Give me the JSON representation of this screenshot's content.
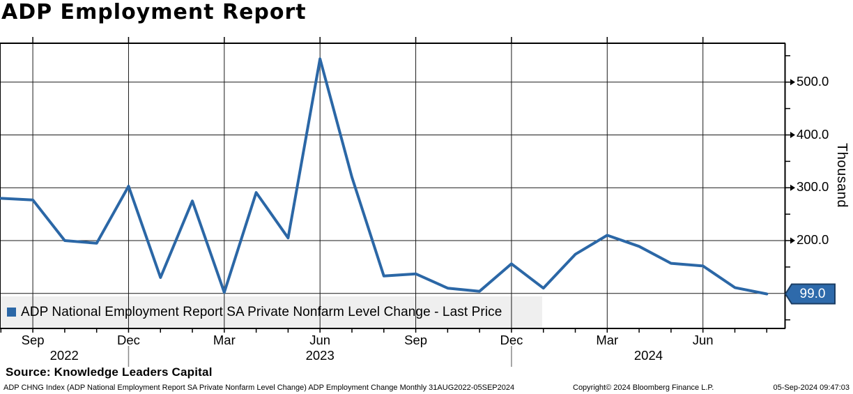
{
  "title": "ADP Employment Report",
  "legend": {
    "label": "ADP National Employment Report SA Private Nonfarm Level Change - Last Price"
  },
  "y_axis": {
    "unit_label": "Thousand",
    "major_tick_labels": [
      "500.0",
      "400.0",
      "300.0",
      "200.0"
    ],
    "major_tick_values": [
      500,
      400,
      300,
      200
    ],
    "minor_tick_values": [
      550,
      450,
      350,
      250,
      150,
      50
    ],
    "last_price_label": "99.0"
  },
  "x_axis": {
    "quarter_labels": [
      "Sep",
      "Dec",
      "Mar",
      "Jun",
      "Sep",
      "Dec",
      "Mar",
      "Jun"
    ],
    "quarter_month_indices": [
      1,
      4,
      7,
      10,
      13,
      16,
      19,
      22
    ],
    "year_labels": [
      "2022",
      "2023",
      "2024"
    ],
    "year_separator_month_indices": [
      4,
      16
    ]
  },
  "source_line": "Source: Knowledge Leaders Capital",
  "footer": {
    "left": "ADP CHNG Index (ADP National Employment Report SA Private Nonfarm Level Change) ADP Employment Change  Monthly 31AUG2022-05SEP2024",
    "copyright": "Copyright© 2024 Bloomberg Finance L.P.",
    "timestamp": "05-Sep-2024 09:47:03"
  },
  "colors": {
    "line": "#2b67a6",
    "legend_marker": "#2b67a6",
    "badge_fill": "#2e6aab",
    "badge_border": "#1b3d63",
    "badge_text": "#ffffff",
    "grid": "#1a1a1a",
    "axis": "#000000",
    "legend_bg": "#efefef",
    "year_separator": "#8a8a8a"
  },
  "chart_data": {
    "type": "line",
    "title": "ADP Employment Report",
    "series_name": "ADP National Employment Report SA Private Nonfarm Level Change",
    "unit": "Thousand",
    "legend_position": "bottom-left",
    "grid": true,
    "x": [
      "Aug 2022",
      "Sep 2022",
      "Oct 2022",
      "Nov 2022",
      "Dec 2022",
      "Jan 2023",
      "Feb 2023",
      "Mar 2023",
      "Apr 2023",
      "May 2023",
      "Jun 2023",
      "Jul 2023",
      "Aug 2023",
      "Sep 2023",
      "Oct 2023",
      "Nov 2023",
      "Dec 2023",
      "Jan 2024",
      "Feb 2024",
      "Mar 2024",
      "Apr 2024",
      "May 2024",
      "Jun 2024",
      "Jul 2024",
      "Aug 2024"
    ],
    "values": [
      280,
      277,
      200,
      195,
      303,
      130,
      275,
      102,
      291,
      205,
      544,
      320,
      133,
      137,
      110,
      104,
      156,
      110,
      174,
      210,
      189,
      157,
      152,
      111,
      99
    ],
    "last_price": 99.0,
    "y_gridline_values": [
      100,
      200,
      300,
      400,
      500
    ],
    "ylim": [
      33,
      573
    ]
  }
}
